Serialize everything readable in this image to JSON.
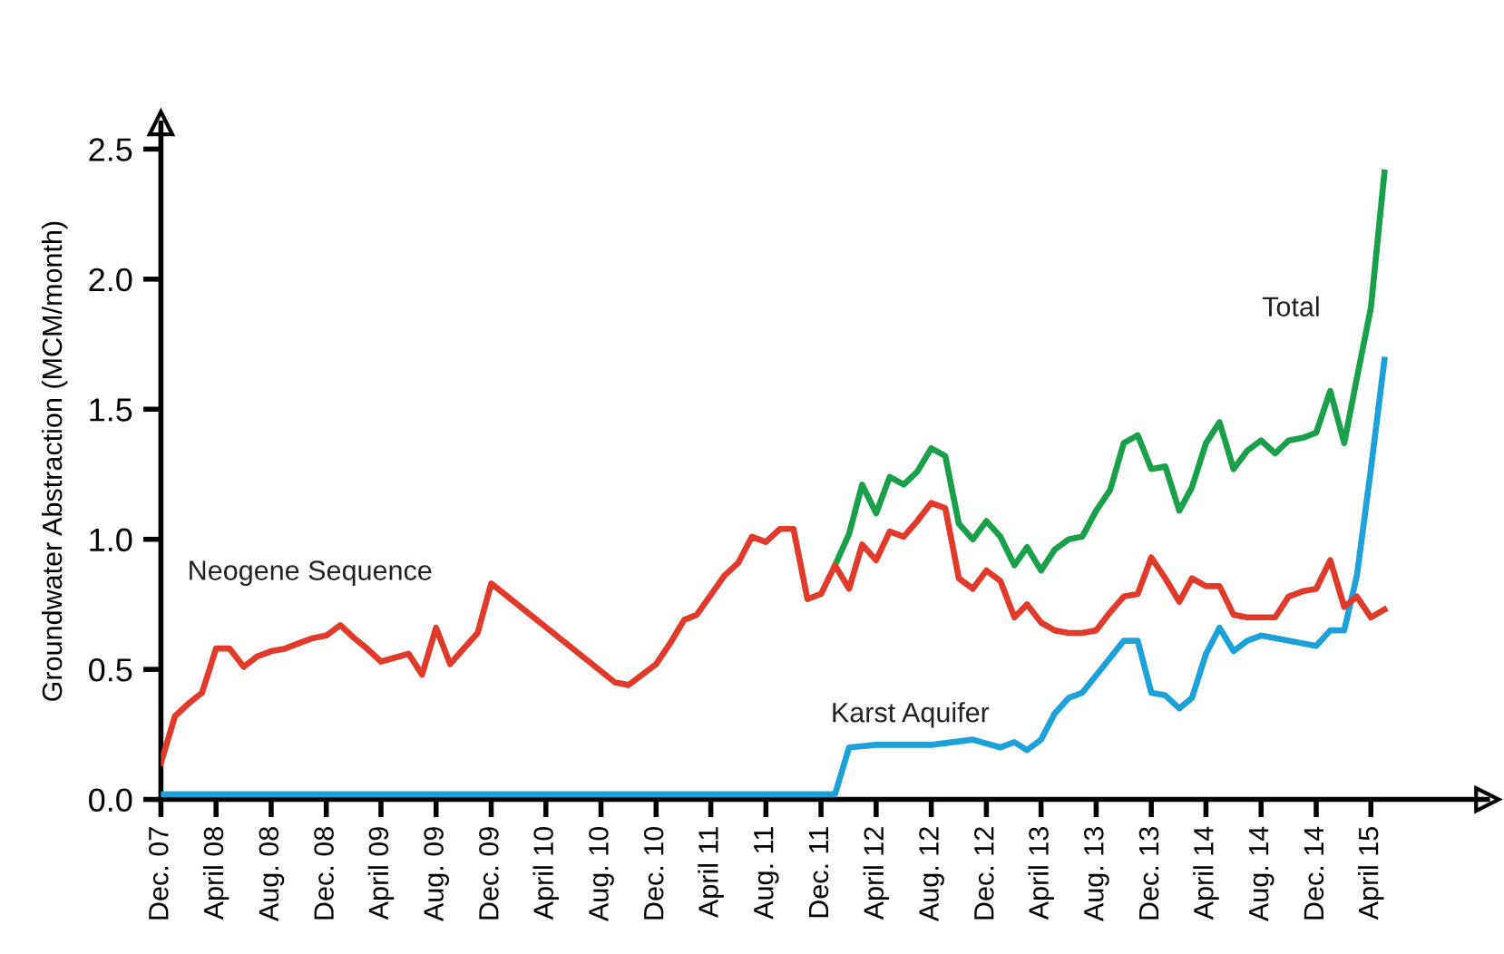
{
  "chart_data": {
    "type": "line",
    "ylabel": "Groundwater Abstraction (MCM/month)",
    "xlim": [
      "2007-12",
      "2015-12-15"
    ],
    "ylim": [
      0,
      2.6
    ],
    "yticks": [
      {
        "value": 0,
        "label": "0.0"
      },
      0.5,
      {
        "value": 1,
        "label": "1.0"
      },
      1.5,
      {
        "value": 2,
        "label": "2.0"
      },
      2.5
    ],
    "xticks": [
      {
        "value": "2007-12",
        "label": "Dec. 07"
      },
      {
        "value": "2008-04",
        "label": "April 08"
      },
      {
        "value": "2008-08",
        "label": "Aug. 08"
      },
      {
        "value": "2008-12",
        "label": "Dec. 08"
      },
      {
        "value": "2009-04",
        "label": "April 09"
      },
      {
        "value": "2009-08",
        "label": "Aug. 09"
      },
      {
        "value": "2009-12",
        "label": "Dec. 09"
      },
      {
        "value": "2010-04",
        "label": "April 10"
      },
      {
        "value": "2010-08",
        "label": "Aug. 10"
      },
      {
        "value": "2010-12",
        "label": "Dec. 10"
      },
      {
        "value": "2011-04",
        "label": "April 11"
      },
      {
        "value": "2011-08",
        "label": "Aug. 11"
      },
      {
        "value": "2011-12",
        "label": "Dec. 11"
      },
      {
        "value": "2012-04",
        "label": "April 12"
      },
      {
        "value": "2012-08",
        "label": "Aug. 12"
      },
      {
        "value": "2012-12",
        "label": "Dec. 12"
      },
      {
        "value": "2013-04",
        "label": "April 13"
      },
      {
        "value": "2013-08",
        "label": "Aug. 13"
      },
      {
        "value": "2013-12",
        "label": "Dec. 13"
      },
      {
        "value": "2014-04",
        "label": "April 14"
      },
      {
        "value": "2014-08",
        "label": "Aug. 14"
      },
      {
        "value": "2014-12",
        "label": "Dec. 14"
      },
      {
        "value": "2015-04",
        "label": "April 15"
      }
    ],
    "grid": false,
    "legend": false,
    "marker": "none",
    "line_style": "solid",
    "series": [
      {
        "name": "Neogene Sequence",
        "color": "#e03a2a",
        "x": [
          "2007-12",
          "2008-01",
          "2008-02",
          "2008-03",
          "2008-04",
          "2008-05",
          "2008-06",
          "2008-07",
          "2008-08",
          "2008-09",
          "2008-10",
          "2008-11",
          "2008-12",
          "2009-01",
          "2009-02",
          "2009-03",
          "2009-04",
          "2009-06",
          "2009-07",
          "2009-08",
          "2009-09",
          "2009-10",
          "2009-11",
          "2009-12",
          "2010-09",
          "2010-10",
          "2010-12",
          "2011-01",
          "2011-02",
          "2011-03",
          "2011-05",
          "2011-06",
          "2011-07",
          "2011-08",
          "2011-09",
          "2011-10",
          "2011-11",
          "2011-12",
          "2012-01",
          "2012-02",
          "2012-03",
          "2012-04",
          "2012-05",
          "2012-06",
          "2012-07",
          "2012-08",
          "2012-09",
          "2012-10",
          "2012-11",
          "2012-12",
          "2013-01",
          "2013-02",
          "2013-03",
          "2013-04",
          "2013-05",
          "2013-06",
          "2013-07",
          "2013-08",
          "2013-09",
          "2013-10",
          "2013-11",
          "2013-12",
          "2014-01",
          "2014-02",
          "2014-03",
          "2014-04",
          "2014-05",
          "2014-06",
          "2014-07",
          "2014-08",
          "2014-09",
          "2014-10",
          "2014-11",
          "2014-12",
          "2015-01",
          "2015-02",
          "2015-03",
          "2015-04",
          "2015-05"
        ],
        "values": [
          0.14,
          0.32,
          0.37,
          0.41,
          0.58,
          0.58,
          0.51,
          0.55,
          0.57,
          0.58,
          0.6,
          0.62,
          0.63,
          0.67,
          0.62,
          0.58,
          0.53,
          0.56,
          0.48,
          0.66,
          0.52,
          0.58,
          0.64,
          0.83,
          0.45,
          0.44,
          0.52,
          0.6,
          0.69,
          0.71,
          0.86,
          0.91,
          1.01,
          0.99,
          1.04,
          1.04,
          0.77,
          0.79,
          0.9,
          0.81,
          0.98,
          0.92,
          1.03,
          1.01,
          1.07,
          1.14,
          1.12,
          0.85,
          0.81,
          0.88,
          0.84,
          0.7,
          0.75,
          0.68,
          0.65,
          0.64,
          0.64,
          0.65,
          0.72,
          0.78,
          0.79,
          0.93,
          0.85,
          0.76,
          0.85,
          0.82,
          0.82,
          0.71,
          0.7,
          0.7,
          0.7,
          0.78,
          0.8,
          0.81,
          0.92,
          0.74,
          0.78,
          0.7,
          0.73
        ]
      },
      {
        "name": "Karst Aquifer",
        "color": "#1ea0d8",
        "x": [
          "2007-12",
          "2012-01",
          "2012-02",
          "2012-04",
          "2012-08",
          "2012-11",
          "2013-01",
          "2013-02",
          "2013-03",
          "2013-04",
          "2013-05",
          "2013-06",
          "2013-07",
          "2013-10",
          "2013-11",
          "2013-12",
          "2014-01",
          "2014-02",
          "2014-03",
          "2014-04",
          "2014-05",
          "2014-06",
          "2014-07",
          "2014-08",
          "2014-10",
          "2014-12",
          "2015-01",
          "2015-02",
          "2015-03",
          "2015-04",
          "2015-05"
        ],
        "values": [
          0.02,
          0.02,
          0.2,
          0.21,
          0.21,
          0.23,
          0.2,
          0.22,
          0.19,
          0.23,
          0.33,
          0.39,
          0.41,
          0.61,
          0.61,
          0.41,
          0.4,
          0.35,
          0.39,
          0.56,
          0.66,
          0.57,
          0.61,
          0.63,
          0.61,
          0.59,
          0.65,
          0.65,
          0.86,
          1.27,
          1.69
        ]
      },
      {
        "name": "Total",
        "color": "#1aa04a",
        "x": [
          "2012-01",
          "2012-02",
          "2012-03",
          "2012-04",
          "2012-05",
          "2012-06",
          "2012-07",
          "2012-08",
          "2012-09",
          "2012-10",
          "2012-11",
          "2012-12",
          "2013-01",
          "2013-02",
          "2013-03",
          "2013-04",
          "2013-05",
          "2013-06",
          "2013-07",
          "2013-08",
          "2013-09",
          "2013-10",
          "2013-11",
          "2013-12",
          "2014-01",
          "2014-02",
          "2014-03",
          "2014-04",
          "2014-05",
          "2014-06",
          "2014-07",
          "2014-08",
          "2014-09",
          "2014-10",
          "2014-11",
          "2014-12",
          "2015-01",
          "2015-02",
          "2015-03",
          "2015-04",
          "2015-05"
        ],
        "values": [
          0.9,
          1.02,
          1.21,
          1.1,
          1.24,
          1.21,
          1.26,
          1.35,
          1.32,
          1.06,
          1.0,
          1.07,
          1.01,
          0.9,
          0.97,
          0.88,
          0.96,
          1.0,
          1.01,
          1.11,
          1.19,
          1.37,
          1.4,
          1.27,
          1.28,
          1.11,
          1.2,
          1.37,
          1.45,
          1.27,
          1.34,
          1.38,
          1.33,
          1.38,
          1.39,
          1.41,
          1.57,
          1.37,
          1.62,
          1.89,
          2.41
        ]
      }
    ]
  }
}
